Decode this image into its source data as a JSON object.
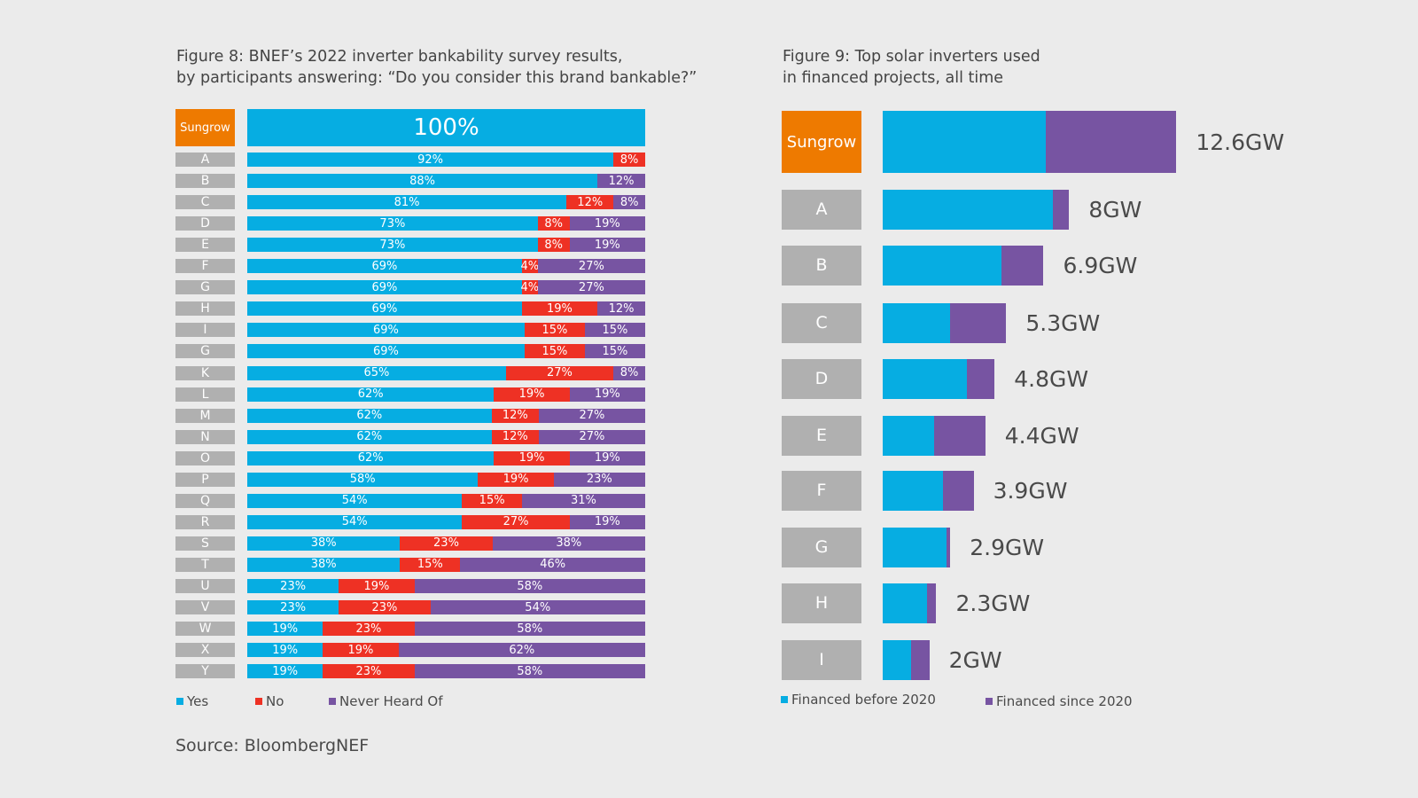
{
  "colors": {
    "yes": "#06ade2",
    "no": "#ee3124",
    "never": "#7754a2",
    "financed_before": "#06ade2",
    "financed_since": "#7754a2",
    "highlight": "#ee7a00",
    "label_box": "#b0b0b0"
  },
  "source": "Source: BloombergNEF",
  "chart_data": [
    {
      "type": "bar",
      "orientation": "horizontal-stacked-100",
      "title_lines": [
        "Figure 8: BNEF’s 2022 inverter bankability survey results,",
        "by participants answering: “Do you consider this brand bankable?”"
      ],
      "categories": [
        "Sungrow",
        "A",
        "B",
        "C",
        "D",
        "E",
        "F",
        "G",
        "H",
        "I",
        "G",
        "K",
        "L",
        "M",
        "N",
        "O",
        "P",
        "Q",
        "R",
        "S",
        "T",
        "U",
        "V",
        "W",
        "X",
        "Y"
      ],
      "series": [
        {
          "name": "Yes",
          "values": [
            100,
            92,
            88,
            81,
            73,
            73,
            69,
            69,
            69,
            69,
            69,
            65,
            62,
            62,
            62,
            62,
            58,
            54,
            54,
            38,
            38,
            23,
            23,
            19,
            19,
            19
          ]
        },
        {
          "name": "No",
          "values": [
            0,
            8,
            0,
            12,
            8,
            8,
            4,
            4,
            19,
            15,
            15,
            27,
            19,
            12,
            12,
            19,
            19,
            15,
            27,
            23,
            15,
            19,
            23,
            23,
            19,
            23
          ]
        },
        {
          "name": "Never Heard Of",
          "values": [
            0,
            0,
            12,
            8,
            19,
            19,
            27,
            27,
            12,
            15,
            15,
            8,
            19,
            27,
            27,
            19,
            23,
            31,
            19,
            38,
            46,
            58,
            54,
            58,
            62,
            58
          ]
        }
      ],
      "unit": "%",
      "legend": "bottom-left"
    },
    {
      "type": "bar",
      "orientation": "horizontal-stacked",
      "title_lines": [
        "Figure 9: Top solar inverters used",
        "in financed projects, all time"
      ],
      "categories": [
        "Sungrow",
        "A",
        "B",
        "C",
        "D",
        "E",
        "F",
        "G",
        "H",
        "I"
      ],
      "totals_labels": [
        "12.6GW",
        "8GW",
        "6.9GW",
        "5.3GW",
        "4.8GW",
        "4.4GW",
        "3.9GW",
        "2.9GW",
        "2.3GW",
        "2GW"
      ],
      "totals": [
        12.6,
        8,
        6.9,
        5.3,
        4.8,
        4.4,
        3.9,
        2.9,
        2.3,
        2
      ],
      "series": [
        {
          "name": "Financed before 2020",
          "values": [
            7.0,
            7.3,
            5.1,
            2.9,
            3.6,
            2.2,
            2.6,
            2.75,
            1.9,
            1.2
          ]
        },
        {
          "name": "Financed since 2020",
          "values": [
            5.6,
            0.7,
            1.8,
            2.4,
            1.2,
            2.2,
            1.3,
            0.15,
            0.4,
            0.8
          ]
        }
      ],
      "unit": "GW",
      "legend": "bottom-left"
    }
  ]
}
